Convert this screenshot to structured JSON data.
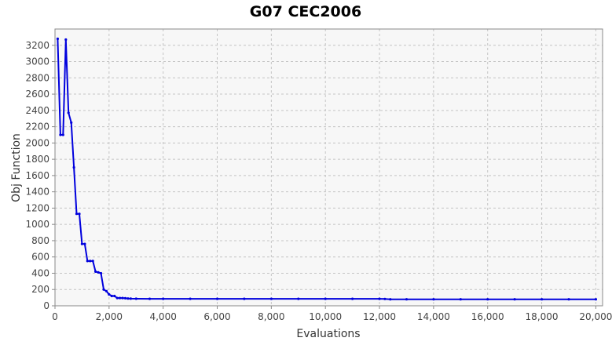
{
  "chart_data": {
    "type": "line",
    "title": "G07 CEC2006",
    "xlabel": "Evaluations",
    "ylabel": "Obj Function",
    "xlim": [
      0,
      20250
    ],
    "ylim": [
      0,
      3400
    ],
    "xticks": [
      0,
      2000,
      4000,
      6000,
      8000,
      10000,
      12000,
      14000,
      16000,
      18000,
      20000
    ],
    "xtick_labels": [
      "0",
      "2,000",
      "4,000",
      "6,000",
      "8,000",
      "10,000",
      "12,000",
      "14,000",
      "16,000",
      "18,000",
      "20,000"
    ],
    "yticks": [
      0,
      200,
      400,
      600,
      800,
      1000,
      1200,
      1400,
      1600,
      1800,
      2000,
      2200,
      2400,
      2600,
      2800,
      3000,
      3200
    ],
    "ytick_labels": [
      "0",
      "200",
      "400",
      "600",
      "800",
      "1000",
      "1200",
      "1400",
      "1600",
      "1800",
      "2000",
      "2200",
      "2400",
      "2600",
      "2800",
      "3000",
      "3200"
    ],
    "grid": true,
    "legend": "none",
    "colors": {
      "line": "#0000dd",
      "plot_background": "#f7f7f7",
      "plot_border": "#8a8a8a"
    },
    "series": [
      {
        "x": [
          100,
          200,
          300,
          400,
          500,
          600,
          700,
          800,
          900,
          1000,
          1100,
          1200,
          1300,
          1400,
          1500,
          1600,
          1700,
          1800,
          1900,
          2000,
          2100,
          2200,
          2300,
          2400,
          2500,
          2600,
          2700,
          2800,
          3000,
          3500,
          4000,
          5000,
          6000,
          7000,
          8000,
          9000,
          10000,
          11000,
          12000,
          12200,
          12400,
          13000,
          14000,
          15000,
          16000,
          17000,
          18000,
          19000,
          20000
        ],
        "y": [
          3280,
          2100,
          2100,
          3270,
          2370,
          2250,
          1700,
          1130,
          1130,
          760,
          760,
          550,
          550,
          550,
          420,
          410,
          400,
          200,
          180,
          140,
          120,
          120,
          95,
          95,
          95,
          92,
          90,
          88,
          87,
          86,
          86,
          86,
          86,
          86,
          86,
          86,
          86,
          86,
          86,
          84,
          80,
          80,
          80,
          80,
          80,
          80,
          80,
          80,
          80
        ]
      }
    ]
  }
}
